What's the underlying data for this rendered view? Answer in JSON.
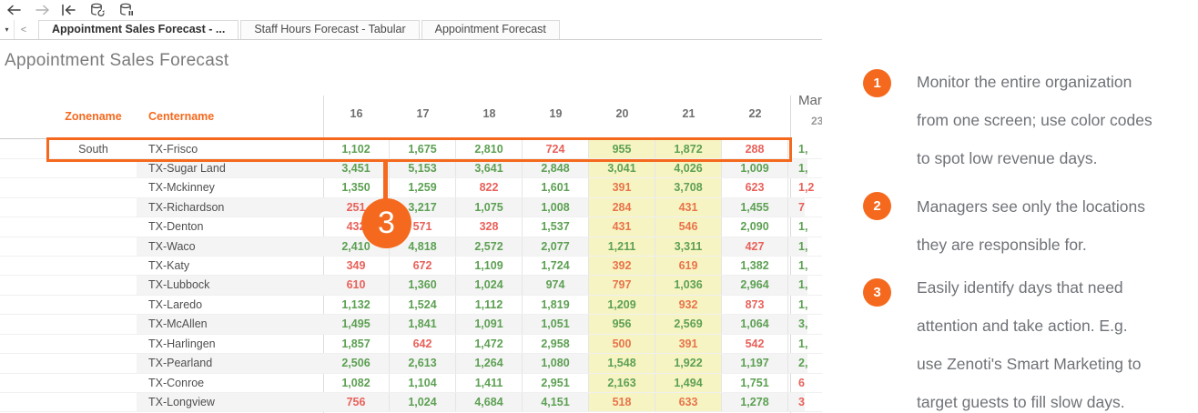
{
  "toolbar": {
    "icons": [
      "back-icon",
      "forward-icon",
      "revert-icon",
      "refresh-data-icon",
      "pause-auto-updates-icon"
    ]
  },
  "tabs": {
    "dropdown_caret": "▾",
    "prev_arrow": "<",
    "items": [
      {
        "label": "Appointment Sales Forecast - ...",
        "active": true
      },
      {
        "label": "Staff Hours Forecast - Tabular",
        "active": false
      },
      {
        "label": "Appointment Forecast",
        "active": false
      }
    ]
  },
  "title": "Appointment Sales Forecast",
  "table": {
    "zone_header": "Zonename",
    "center_header": "Centername",
    "day_headers": [
      "16",
      "17",
      "18",
      "19",
      "20",
      "21",
      "22"
    ],
    "month_header": "Mar",
    "next_day_header": "23",
    "highlighted_day_columns": [
      "20",
      "21"
    ],
    "rows": [
      {
        "zone": "South",
        "center": "TX-Frisco",
        "values": [
          "1,102",
          "1,675",
          "2,810",
          "724",
          "955",
          "1,872",
          "288"
        ],
        "neg": [
          false,
          false,
          false,
          true,
          false,
          false,
          true
        ],
        "mar": "1,",
        "mar_neg": false,
        "selected": true
      },
      {
        "zone": "",
        "center": "TX-Sugar Land",
        "values": [
          "3,451",
          "5,153",
          "3,641",
          "2,848",
          "3,041",
          "4,026",
          "1,009"
        ],
        "neg": [
          false,
          false,
          false,
          false,
          false,
          false,
          false
        ],
        "mar": "1,",
        "mar_neg": false,
        "selected": false
      },
      {
        "zone": "",
        "center": "TX-Mckinney",
        "values": [
          "1,350",
          "1,259",
          "822",
          "1,601",
          "391",
          "3,708",
          "623"
        ],
        "neg": [
          false,
          false,
          true,
          false,
          true,
          false,
          true
        ],
        "mar": "1,2",
        "mar_neg": true,
        "selected": false
      },
      {
        "zone": "",
        "center": "TX-Richardson",
        "values": [
          "251",
          "3,217",
          "1,075",
          "1,008",
          "284",
          "431",
          "1,455"
        ],
        "neg": [
          true,
          false,
          false,
          false,
          true,
          true,
          false
        ],
        "mar": "7",
        "mar_neg": true,
        "selected": false
      },
      {
        "zone": "",
        "center": "TX-Denton",
        "values": [
          "432",
          "571",
          "328",
          "1,537",
          "431",
          "546",
          "2,090"
        ],
        "neg": [
          true,
          true,
          true,
          false,
          true,
          true,
          false
        ],
        "mar": "1,",
        "mar_neg": false,
        "selected": false
      },
      {
        "zone": "",
        "center": "TX-Waco",
        "values": [
          "2,410",
          "4,818",
          "2,572",
          "2,077",
          "1,211",
          "3,311",
          "427"
        ],
        "neg": [
          false,
          false,
          false,
          false,
          false,
          false,
          true
        ],
        "mar": "1,",
        "mar_neg": false,
        "selected": false
      },
      {
        "zone": "",
        "center": "TX-Katy",
        "values": [
          "349",
          "672",
          "1,109",
          "1,724",
          "392",
          "619",
          "1,382"
        ],
        "neg": [
          true,
          true,
          false,
          false,
          true,
          true,
          false
        ],
        "mar": "1,",
        "mar_neg": false,
        "selected": false
      },
      {
        "zone": "",
        "center": "TX-Lubbock",
        "values": [
          "610",
          "1,360",
          "1,024",
          "974",
          "797",
          "1,036",
          "2,964"
        ],
        "neg": [
          true,
          false,
          false,
          false,
          true,
          false,
          false
        ],
        "mar": "1,",
        "mar_neg": false,
        "selected": false
      },
      {
        "zone": "",
        "center": "TX-Laredo",
        "values": [
          "1,132",
          "1,524",
          "1,112",
          "1,819",
          "1,209",
          "932",
          "873"
        ],
        "neg": [
          false,
          false,
          false,
          false,
          false,
          true,
          true
        ],
        "mar": "1,",
        "mar_neg": false,
        "selected": false
      },
      {
        "zone": "",
        "center": "TX-McAllen",
        "values": [
          "1,495",
          "1,841",
          "1,091",
          "1,051",
          "956",
          "2,569",
          "1,064"
        ],
        "neg": [
          false,
          false,
          false,
          false,
          false,
          false,
          false
        ],
        "mar": "3,",
        "mar_neg": false,
        "selected": false
      },
      {
        "zone": "",
        "center": "TX-Harlingen",
        "values": [
          "1,857",
          "642",
          "1,472",
          "2,958",
          "500",
          "391",
          "542"
        ],
        "neg": [
          false,
          true,
          false,
          false,
          true,
          true,
          true
        ],
        "mar": "1,",
        "mar_neg": false,
        "selected": false
      },
      {
        "zone": "",
        "center": "TX-Pearland",
        "values": [
          "2,506",
          "2,613",
          "1,264",
          "1,080",
          "1,548",
          "1,922",
          "1,197"
        ],
        "neg": [
          false,
          false,
          false,
          false,
          false,
          false,
          false
        ],
        "mar": "2,",
        "mar_neg": false,
        "selected": false
      },
      {
        "zone": "",
        "center": "TX-Conroe",
        "values": [
          "1,082",
          "1,104",
          "1,411",
          "2,951",
          "2,163",
          "1,494",
          "1,751"
        ],
        "neg": [
          false,
          false,
          false,
          false,
          false,
          false,
          false
        ],
        "mar": "6",
        "mar_neg": true,
        "selected": false
      },
      {
        "zone": "",
        "center": "TX-Longview",
        "values": [
          "756",
          "1,024",
          "4,684",
          "4,151",
          "518",
          "633",
          "1,278"
        ],
        "neg": [
          true,
          false,
          false,
          false,
          true,
          true,
          false
        ],
        "mar": "3",
        "mar_neg": true,
        "selected": false
      }
    ]
  },
  "callout": {
    "label": "3"
  },
  "annotations": [
    {
      "num": "1",
      "lines": [
        "Monitor the entire organization",
        "from one screen; use color codes",
        "to spot low revenue days."
      ]
    },
    {
      "num": "2",
      "lines": [
        "Managers see only the locations",
        "they are responsible for."
      ]
    },
    {
      "num": "3",
      "lines": [
        "Easily identify days that need",
        "attention and take action. E.g.",
        "use Zenoti's Smart Marketing to",
        "target guests to fill slow days."
      ]
    }
  ],
  "colors": {
    "accent": "#f4691e",
    "positive": "#5da053",
    "negative": "#e8615a",
    "negative_on_highlight": "#e8744a",
    "highlight_bg": "#f7f4c3",
    "band_bg": "#f4f4f4"
  }
}
